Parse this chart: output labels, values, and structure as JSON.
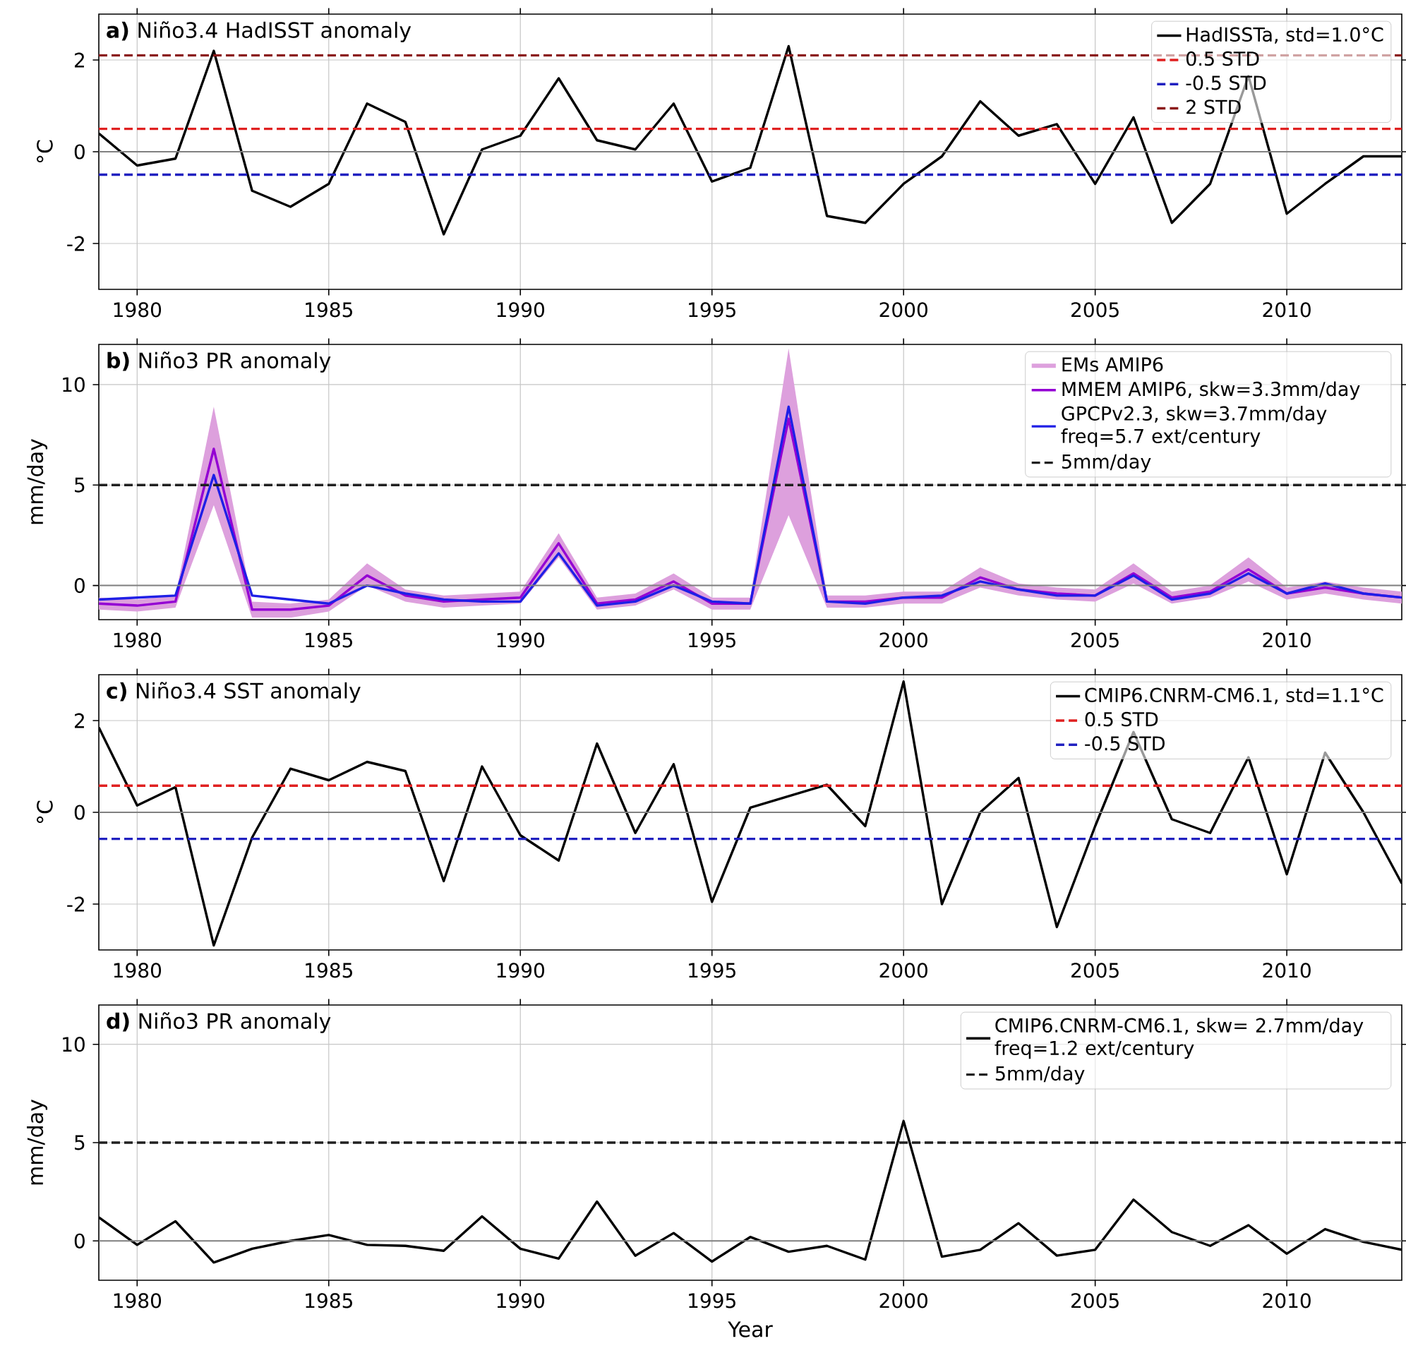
{
  "chart_data": [
    {
      "type": "line",
      "title": "**a)** Niño3.4 HadISST anomaly",
      "ylabel": "°C",
      "x": [
        1979,
        1980,
        1981,
        1982,
        1983,
        1984,
        1985,
        1986,
        1987,
        1988,
        1989,
        1990,
        1991,
        1992,
        1993,
        1994,
        1995,
        1996,
        1997,
        1998,
        1999,
        2000,
        2001,
        2002,
        2003,
        2004,
        2005,
        2006,
        2007,
        2008,
        2009,
        2010,
        2011,
        2012,
        2013
      ],
      "series": [
        {
          "name": "HadISSTa, std=1.0°C",
          "color": "#000000",
          "values": [
            0.4,
            -0.3,
            -0.15,
            2.2,
            -0.85,
            -1.2,
            -0.7,
            1.05,
            0.65,
            -1.8,
            0.05,
            0.35,
            1.6,
            0.25,
            0.05,
            1.05,
            -0.65,
            -0.35,
            2.3,
            -1.4,
            -1.55,
            -0.7,
            -0.1,
            1.1,
            0.35,
            0.6,
            -0.7,
            0.75,
            -1.55,
            -0.7,
            1.65,
            -1.35,
            -0.7,
            -0.1,
            -0.1
          ]
        }
      ],
      "ref_lines": [
        {
          "axis": "y",
          "value": 0,
          "color": "#808080",
          "line_style": "solid"
        },
        {
          "axis": "y",
          "value": 0.5,
          "label": "0.5 STD",
          "color": "#e02020",
          "line_style": "dashed"
        },
        {
          "axis": "y",
          "value": -0.5,
          "label": "-0.5 STD",
          "color": "#2020c0",
          "line_style": "dashed"
        },
        {
          "axis": "y",
          "value": 2.1,
          "label": "2 STD",
          "color": "#8b1a1a",
          "line_style": "dashed"
        }
      ],
      "xlim": [
        1979,
        2013
      ],
      "ylim": [
        -3,
        3
      ],
      "xticks": [
        1980,
        1985,
        1990,
        1995,
        2000,
        2005,
        2010
      ],
      "yticks": [
        -2,
        0,
        2
      ],
      "grid": true,
      "legend": "top right",
      "line_style": "solid"
    },
    {
      "type": "line",
      "title": "**b)** Niño3 PR anomaly",
      "ylabel": "mm/day",
      "x": [
        1979,
        1980,
        1981,
        1982,
        1983,
        1984,
        1985,
        1986,
        1987,
        1988,
        1989,
        1990,
        1991,
        1992,
        1993,
        1994,
        1995,
        1996,
        1997,
        1998,
        1999,
        2000,
        2001,
        2002,
        2003,
        2004,
        2005,
        2006,
        2007,
        2008,
        2009,
        2010,
        2011,
        2012,
        2013
      ],
      "series": [
        {
          "name": "EMs AMIP6",
          "color": "#dda0dd",
          "values": [
            null,
            null,
            null,
            null,
            null,
            null,
            null,
            null,
            null,
            null,
            null,
            null,
            null,
            null,
            null,
            null,
            null,
            null,
            null,
            null,
            null,
            null,
            null,
            null,
            null,
            null,
            null,
            null,
            null,
            null,
            null,
            null,
            null,
            null,
            null
          ],
          "lower": [
            -1.2,
            -1.3,
            -1.1,
            4.0,
            -1.6,
            -1.6,
            -1.3,
            0.0,
            -0.8,
            -1.1,
            -1.0,
            -0.9,
            1.4,
            -1.2,
            -1.0,
            -0.2,
            -1.2,
            -1.2,
            3.5,
            -1.1,
            -1.1,
            -0.9,
            -0.9,
            -0.1,
            -0.5,
            -0.7,
            -0.8,
            0.1,
            -0.9,
            -0.6,
            0.2,
            -0.7,
            -0.4,
            -0.7,
            -0.9
          ],
          "upper": [
            -0.6,
            -0.7,
            -0.5,
            8.9,
            -0.8,
            -0.9,
            -0.7,
            1.1,
            -0.2,
            -0.5,
            -0.4,
            -0.3,
            2.6,
            -0.6,
            -0.4,
            0.6,
            -0.6,
            -0.6,
            11.8,
            -0.5,
            -0.5,
            -0.3,
            -0.3,
            0.9,
            0.1,
            -0.1,
            -0.2,
            1.1,
            -0.3,
            0.0,
            1.4,
            -0.1,
            0.2,
            -0.1,
            -0.3
          ]
        },
        {
          "name": "MMEM AMIP6, skw=3.3mm/day",
          "color": "#9400d3",
          "values": [
            -0.9,
            -1.0,
            -0.8,
            6.8,
            -1.2,
            -1.2,
            -1.0,
            0.5,
            -0.5,
            -0.8,
            -0.7,
            -0.6,
            2.1,
            -0.9,
            -0.7,
            0.2,
            -0.9,
            -0.9,
            8.3,
            -0.8,
            -0.8,
            -0.6,
            -0.6,
            0.4,
            -0.2,
            -0.4,
            -0.5,
            0.6,
            -0.6,
            -0.3,
            0.8,
            -0.4,
            -0.1,
            -0.4,
            -0.6
          ]
        },
        {
          "name": "GPCPv2.3, skw=3.7mm/day freq=5.7 ext/century",
          "color": "#1f1fe6",
          "values": [
            -0.7,
            -0.6,
            -0.5,
            5.5,
            -0.5,
            -0.7,
            -0.9,
            0.0,
            -0.4,
            -0.7,
            -0.8,
            -0.8,
            1.6,
            -1.0,
            -0.8,
            0.0,
            -0.8,
            -0.9,
            8.9,
            -0.8,
            -0.9,
            -0.6,
            -0.5,
            0.2,
            -0.2,
            -0.5,
            -0.5,
            0.5,
            -0.7,
            -0.4,
            0.6,
            -0.4,
            0.1,
            -0.4,
            -0.6
          ]
        }
      ],
      "ref_lines": [
        {
          "axis": "y",
          "value": 0,
          "color": "#808080",
          "line_style": "solid"
        },
        {
          "axis": "y",
          "value": 5,
          "label": "5mm/day",
          "color": "#202020",
          "line_style": "dashed"
        }
      ],
      "xlim": [
        1979,
        2013
      ],
      "ylim": [
        -1.7,
        12
      ],
      "xticks": [
        1980,
        1985,
        1990,
        1995,
        2000,
        2005,
        2010
      ],
      "yticks": [
        0,
        5,
        10
      ],
      "grid": true,
      "legend": "top right",
      "line_style": "solid"
    },
    {
      "type": "line",
      "title": "**c)** Niño3.4 SST anomaly",
      "ylabel": "°C",
      "x": [
        1979,
        1980,
        1981,
        1982,
        1983,
        1984,
        1985,
        1986,
        1987,
        1988,
        1989,
        1990,
        1991,
        1992,
        1993,
        1994,
        1995,
        1996,
        1997,
        1998,
        1999,
        2000,
        2001,
        2002,
        2003,
        2004,
        2005,
        2006,
        2007,
        2008,
        2009,
        2010,
        2011,
        2012,
        2013
      ],
      "series": [
        {
          "name": "CMIP6.CNRM-CM6.1, std=1.1°C",
          "color": "#000000",
          "values": [
            1.85,
            0.15,
            0.55,
            -2.9,
            -0.55,
            0.95,
            0.7,
            1.1,
            0.9,
            -1.5,
            1.0,
            -0.5,
            -1.05,
            1.5,
            -0.45,
            1.05,
            -1.95,
            0.1,
            0.35,
            0.6,
            -0.3,
            2.85,
            -2.0,
            0.0,
            0.75,
            -2.5,
            -0.3,
            1.75,
            -0.15,
            -0.45,
            1.2,
            -1.35,
            1.3,
            0.0,
            -1.55
          ]
        }
      ],
      "ref_lines": [
        {
          "axis": "y",
          "value": 0,
          "color": "#808080",
          "line_style": "solid"
        },
        {
          "axis": "y",
          "value": 0.58,
          "label": "0.5 STD",
          "color": "#e02020",
          "line_style": "dashed"
        },
        {
          "axis": "y",
          "value": -0.58,
          "label": "-0.5 STD",
          "color": "#2020c0",
          "line_style": "dashed"
        }
      ],
      "xlim": [
        1979,
        2013
      ],
      "ylim": [
        -3,
        3
      ],
      "xticks": [
        1980,
        1985,
        1990,
        1995,
        2000,
        2005,
        2010
      ],
      "yticks": [
        -2,
        0,
        2
      ],
      "grid": true,
      "legend": "top right",
      "line_style": "solid"
    },
    {
      "type": "line",
      "title": "**d)** Niño3 PR anomaly",
      "xlabel": "Year",
      "ylabel": "mm/day",
      "x": [
        1979,
        1980,
        1981,
        1982,
        1983,
        1984,
        1985,
        1986,
        1987,
        1988,
        1989,
        1990,
        1991,
        1992,
        1993,
        1994,
        1995,
        1996,
        1997,
        1998,
        1999,
        2000,
        2001,
        2002,
        2003,
        2004,
        2005,
        2006,
        2007,
        2008,
        2009,
        2010,
        2011,
        2012,
        2013
      ],
      "series": [
        {
          "name": "CMIP6.CNRM-CM6.1, skw= 2.7mm/day freq=1.2 ext/century",
          "color": "#000000",
          "values": [
            1.2,
            -0.2,
            1.0,
            -1.1,
            -0.4,
            0.0,
            0.3,
            -0.2,
            -0.25,
            -0.5,
            1.25,
            -0.4,
            -0.9,
            2.0,
            -0.75,
            0.4,
            -1.05,
            0.2,
            -0.55,
            -0.25,
            -0.95,
            6.1,
            -0.8,
            -0.45,
            0.9,
            -0.75,
            -0.45,
            2.1,
            0.45,
            -0.25,
            0.8,
            -0.65,
            0.6,
            -0.05,
            -0.45
          ]
        }
      ],
      "ref_lines": [
        {
          "axis": "y",
          "value": 0,
          "color": "#808080",
          "line_style": "solid"
        },
        {
          "axis": "y",
          "value": 5,
          "label": "5mm/day",
          "color": "#202020",
          "line_style": "dashed"
        }
      ],
      "xlim": [
        1979,
        2013
      ],
      "ylim": [
        -2,
        12
      ],
      "xticks": [
        1980,
        1985,
        1990,
        1995,
        2000,
        2005,
        2010
      ],
      "yticks": [
        0,
        5,
        10
      ],
      "grid": true,
      "legend": "top right",
      "line_style": "solid"
    }
  ]
}
